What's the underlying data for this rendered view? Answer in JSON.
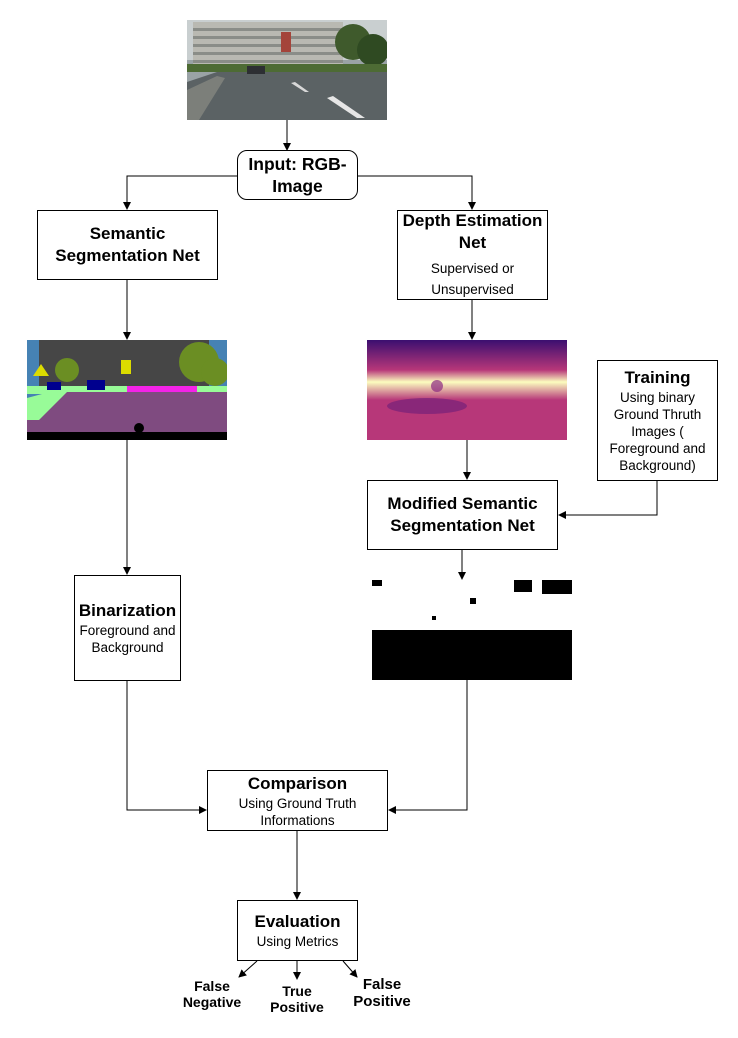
{
  "input": {
    "title": "Input: RGB-Image"
  },
  "semantic_net": {
    "title": "Semantic Segmentation Net"
  },
  "depth_net": {
    "title": "Depth Estimation Net",
    "subtitle": "Supervised or Unsupervised"
  },
  "training": {
    "title": "Training",
    "subtitle": "Using binary Ground Thruth Images ( Foreground and Background)"
  },
  "modified_net": {
    "title": "Modified Semantic Segmentation Net"
  },
  "binarization": {
    "title": "Binarization",
    "subtitle": "Foreground and Background"
  },
  "comparison": {
    "title": "Comparison",
    "subtitle": "Using Ground Truth Informations"
  },
  "evaluation": {
    "title": "Evaluation",
    "subtitle": "Using Metrics"
  },
  "outcomes": {
    "false_negative": "False Negative",
    "true_positive": "True Positive",
    "false_positive": "False Positive"
  },
  "colors": {
    "seg_road": "#7f4b80",
    "seg_sky": "#4682b4",
    "seg_building": "#464646",
    "seg_vegetation": "#6b8e23",
    "seg_car": "#00008e",
    "seg_sidewalk": "#f423e8",
    "seg_sign": "#dcdc00",
    "seg_terrain": "#98fb98",
    "depth_far": "#3b0f70",
    "depth_mid": "#b73779",
    "depth_near": "#fcfdbf"
  }
}
